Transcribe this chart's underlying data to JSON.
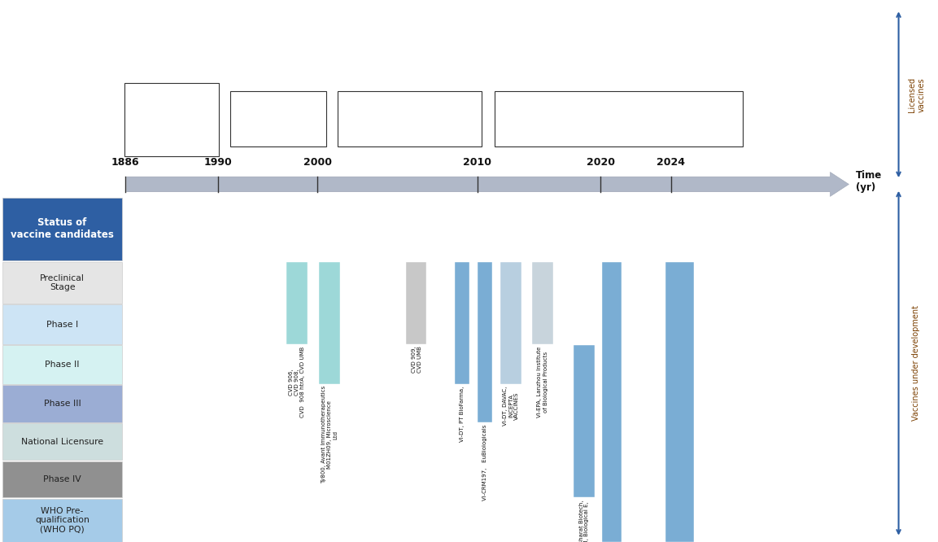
{
  "fig_width": 11.53,
  "fig_height": 6.66,
  "bg_color": "#ffffff",
  "row_labels": [
    "Status of\nvaccine candidates",
    "Preclinical\nStage",
    "Phase I",
    "Phase II",
    "Phase III",
    "National Licensure",
    "Phase IV",
    "WHO Pre-\nqualification\n(WHO PQ)"
  ],
  "row_colors": [
    "#2E5FA3",
    "#e5e5e5",
    "#cde4f5",
    "#d5f2f2",
    "#9badd4",
    "#cddede",
    "#909090",
    "#a5cbe8"
  ],
  "row_text_colors": [
    "#ffffff",
    "#222222",
    "#222222",
    "#222222",
    "#222222",
    "#222222",
    "#222222",
    "#222222"
  ],
  "timeline_color": "#b0b8c8",
  "year_labels": [
    "1886",
    "1990",
    "2000",
    "2010",
    "2020",
    "2024"
  ],
  "licensed_label": "Licensed\nvaccines",
  "development_label": "Vaccines under development",
  "timeline_label": "Time\n(yr)",
  "arrow_color": "#2E5FA3",
  "label_text_color": "#7B3F00",
  "licensed_box_edge": "#333333",
  "licensed_box_fill": "#ffffff"
}
